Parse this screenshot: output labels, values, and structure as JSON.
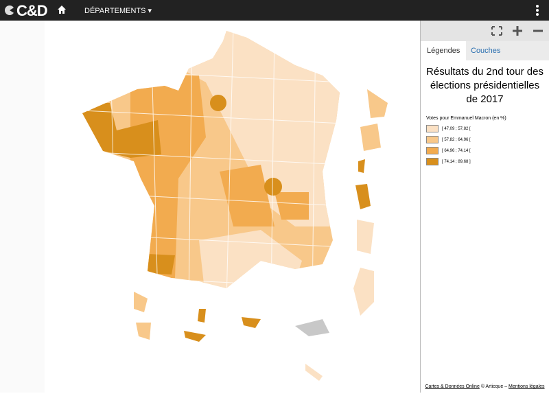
{
  "header": {
    "logo": "C&D",
    "menu": "DÉPARTEMENTS"
  },
  "panel": {
    "tabs": [
      "Légendes",
      "Couches"
    ],
    "legend": {
      "title": "Résultats du 2nd tour des élections présidentielles de 2017",
      "subtitle": "Votes pour Emmanuel Macron (en %)",
      "classes": [
        {
          "label": "[ 47,09 ; 57,82 [",
          "color": "#fbe1c4"
        },
        {
          "label": "[ 57,82 ; 64,96 [",
          "color": "#f8c88a"
        },
        {
          "label": "[ 64,96 ; 74,14 [",
          "color": "#f2ab4f"
        },
        {
          "label": "[ 74,14 ; 89,68 ]",
          "color": "#d88f1c"
        }
      ]
    }
  },
  "footer": {
    "link": "Cartes & Données Online",
    "copyright": "© Articque –",
    "legal": "Mentions légales"
  }
}
